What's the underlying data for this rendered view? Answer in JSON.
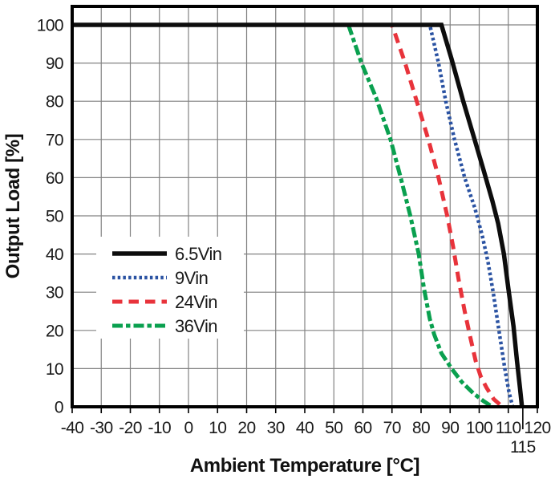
{
  "chart_data": {
    "type": "line",
    "title": "",
    "xlabel": "Ambient Temperature [°C]",
    "ylabel": "Output Load [%]",
    "xlim": [
      -40,
      120
    ],
    "ylim": [
      0,
      105.5
    ],
    "x_ticks": [
      -40,
      -30,
      -20,
      -10,
      0,
      10,
      20,
      30,
      40,
      50,
      60,
      70,
      80,
      90,
      100,
      110,
      120
    ],
    "x_extra_ticks": [
      {
        "value": 115,
        "label": "115"
      }
    ],
    "y_ticks": [
      0,
      10,
      20,
      30,
      40,
      50,
      60,
      70,
      80,
      90,
      100
    ],
    "grid": true,
    "legend_position": "inside-left-middle",
    "series": [
      {
        "name": "6.5Vin",
        "color": "#0d0d0d",
        "dash": "solid",
        "points": [
          [
            -40,
            100
          ],
          [
            87,
            100
          ],
          [
            90.5,
            91
          ],
          [
            94.5,
            80
          ],
          [
            98,
            71
          ],
          [
            101.5,
            62
          ],
          [
            104.5,
            54
          ],
          [
            106.5,
            48
          ],
          [
            108.5,
            40
          ],
          [
            110,
            31
          ],
          [
            111.8,
            21
          ],
          [
            113,
            12
          ],
          [
            114,
            5
          ],
          [
            114.7,
            0
          ]
        ]
      },
      {
        "name": "9Vin",
        "color": "#2a52a2",
        "dash": "dotted",
        "points": [
          [
            -40,
            100
          ],
          [
            83,
            100
          ],
          [
            86,
            90
          ],
          [
            88.5,
            80
          ],
          [
            91.5,
            70
          ],
          [
            95,
            60
          ],
          [
            98.5,
            52
          ],
          [
            101,
            45
          ],
          [
            103,
            38
          ],
          [
            104.8,
            30
          ],
          [
            106.8,
            20
          ],
          [
            108.8,
            10
          ],
          [
            110.2,
            4
          ],
          [
            111.5,
            0
          ]
        ]
      },
      {
        "name": "24Vin",
        "color": "#e8333b",
        "dash": "dashed",
        "points": [
          [
            -40,
            100
          ],
          [
            70,
            100
          ],
          [
            74.5,
            90
          ],
          [
            78.5,
            80
          ],
          [
            82.5,
            70
          ],
          [
            86,
            60
          ],
          [
            89,
            50
          ],
          [
            91,
            42
          ],
          [
            93,
            33
          ],
          [
            95,
            25
          ],
          [
            97,
            18
          ],
          [
            98.8,
            12
          ],
          [
            100.5,
            8
          ],
          [
            102.5,
            5
          ],
          [
            105,
            2
          ],
          [
            108,
            0
          ]
        ]
      },
      {
        "name": "36Vin",
        "color": "#0aa04f",
        "dash": "dashdot",
        "points": [
          [
            -40,
            100
          ],
          [
            55,
            100
          ],
          [
            59.5,
            90
          ],
          [
            64.5,
            81
          ],
          [
            69.5,
            70
          ],
          [
            73,
            60
          ],
          [
            76.3,
            50
          ],
          [
            79.2,
            40
          ],
          [
            81,
            31
          ],
          [
            83,
            23
          ],
          [
            84.5,
            19
          ],
          [
            87,
            14
          ],
          [
            90.5,
            10
          ],
          [
            94,
            6.5
          ],
          [
            98,
            3.5
          ],
          [
            101.5,
            1.5
          ],
          [
            104.5,
            0
          ]
        ]
      }
    ]
  },
  "styles": {
    "grid_color": "#828282",
    "axis_color": "#000000",
    "background": "#ffffff",
    "legend_background": "#ffffff"
  }
}
